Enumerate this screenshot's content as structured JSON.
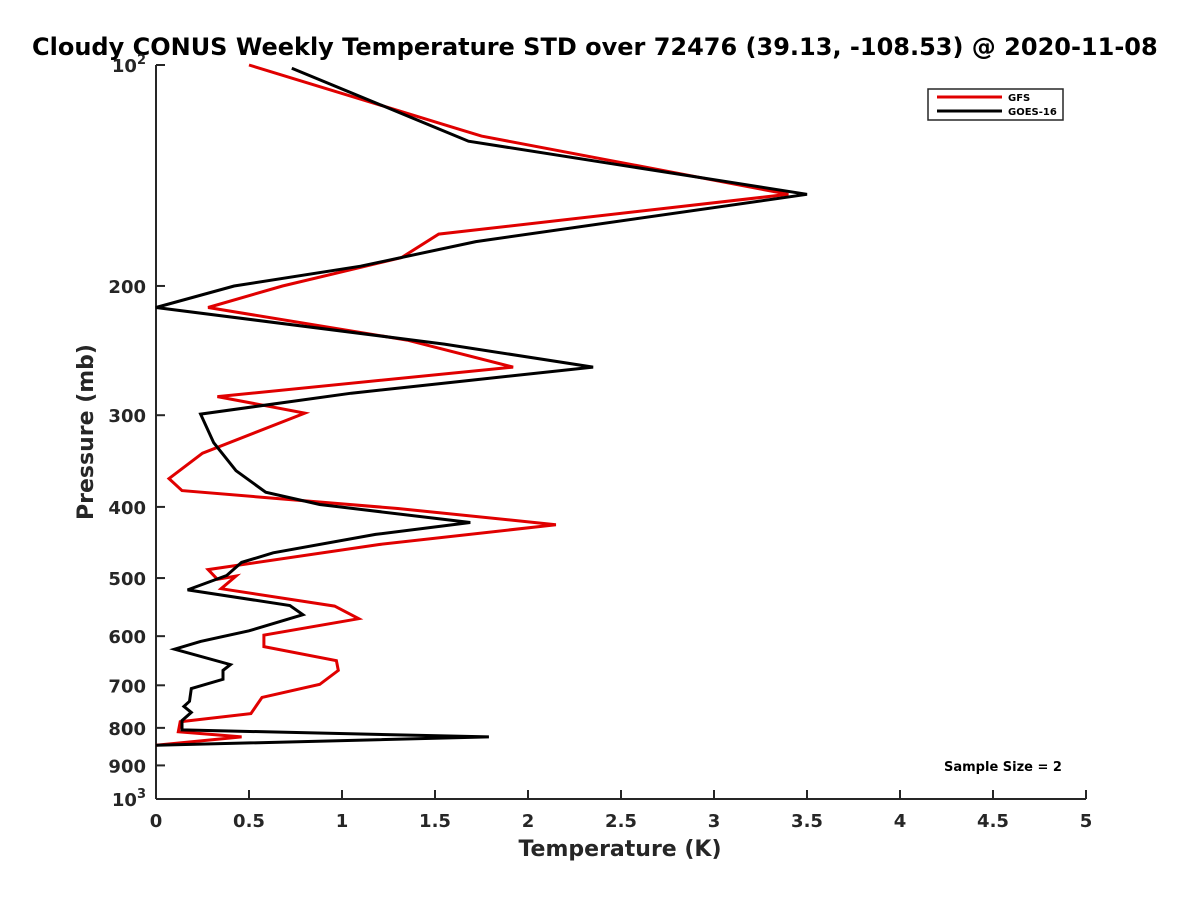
{
  "chart_data": {
    "type": "line",
    "title": "Cloudy CONUS Weekly Temperature STD over 72476 (39.13, -108.53) @ 2020-11-08",
    "xlabel": "Temperature (K)",
    "ylabel": "Pressure (mb)",
    "xlim": [
      0,
      5
    ],
    "ylim": [
      100,
      1000
    ],
    "yscale": "log",
    "y_reversed": true,
    "grid": false,
    "legend_position": "top-right",
    "x_ticks": [
      {
        "value": 0,
        "label": "0"
      },
      {
        "value": 0.5,
        "label": "0.5"
      },
      {
        "value": 1,
        "label": "1"
      },
      {
        "value": 1.5,
        "label": "1.5"
      },
      {
        "value": 2,
        "label": "2"
      },
      {
        "value": 2.5,
        "label": "2.5"
      },
      {
        "value": 3,
        "label": "3"
      },
      {
        "value": 3.5,
        "label": "3.5"
      },
      {
        "value": 4,
        "label": "4"
      },
      {
        "value": 4.5,
        "label": "4.5"
      },
      {
        "value": 5,
        "label": "5"
      }
    ],
    "y_ticks": [
      {
        "value": 100,
        "base": "10",
        "exp": "2"
      },
      {
        "value": 200,
        "label": "200"
      },
      {
        "value": 300,
        "label": "300"
      },
      {
        "value": 400,
        "label": "400"
      },
      {
        "value": 500,
        "label": "500"
      },
      {
        "value": 600,
        "label": "600"
      },
      {
        "value": 700,
        "label": "700"
      },
      {
        "value": 800,
        "label": "800"
      },
      {
        "value": 900,
        "label": "900"
      },
      {
        "value": 1000,
        "base": "10",
        "exp": "3"
      }
    ],
    "annotation": "Sample Size = 2",
    "series": [
      {
        "name": "GFS",
        "color": "#e00000",
        "points": [
          {
            "x": 0.5,
            "y": 100
          },
          {
            "x": 1.75,
            "y": 125
          },
          {
            "x": 3.4,
            "y": 150
          },
          {
            "x": 1.52,
            "y": 170
          },
          {
            "x": 1.32,
            "y": 183
          },
          {
            "x": 0.68,
            "y": 200
          },
          {
            "x": 0.28,
            "y": 214
          },
          {
            "x": 1.35,
            "y": 237
          },
          {
            "x": 1.92,
            "y": 258
          },
          {
            "x": 0.33,
            "y": 283
          },
          {
            "x": 0.8,
            "y": 298
          },
          {
            "x": 0.25,
            "y": 338
          },
          {
            "x": 0.07,
            "y": 366
          },
          {
            "x": 0.14,
            "y": 380
          },
          {
            "x": 1.3,
            "y": 402
          },
          {
            "x": 2.15,
            "y": 423
          },
          {
            "x": 1.2,
            "y": 450
          },
          {
            "x": 0.28,
            "y": 487
          },
          {
            "x": 0.33,
            "y": 502
          },
          {
            "x": 0.43,
            "y": 497
          },
          {
            "x": 0.35,
            "y": 517
          },
          {
            "x": 0.96,
            "y": 546
          },
          {
            "x": 1.09,
            "y": 568
          },
          {
            "x": 0.58,
            "y": 598
          },
          {
            "x": 0.58,
            "y": 620
          },
          {
            "x": 0.97,
            "y": 648
          },
          {
            "x": 0.98,
            "y": 668
          },
          {
            "x": 0.88,
            "y": 698
          },
          {
            "x": 0.57,
            "y": 727
          },
          {
            "x": 0.51,
            "y": 765
          },
          {
            "x": 0.13,
            "y": 785
          },
          {
            "x": 0.12,
            "y": 810
          },
          {
            "x": 0.46,
            "y": 823
          },
          {
            "x": 0.0,
            "y": 845
          }
        ]
      },
      {
        "name": "GOES-16",
        "color": "#000000",
        "points": [
          {
            "x": 0.73,
            "y": 101
          },
          {
            "x": 1.68,
            "y": 127
          },
          {
            "x": 3.5,
            "y": 150
          },
          {
            "x": 1.72,
            "y": 174
          },
          {
            "x": 1.1,
            "y": 188
          },
          {
            "x": 0.42,
            "y": 200
          },
          {
            "x": 0.0,
            "y": 214
          },
          {
            "x": 1.55,
            "y": 240
          },
          {
            "x": 2.35,
            "y": 258
          },
          {
            "x": 1.05,
            "y": 280
          },
          {
            "x": 0.24,
            "y": 299
          },
          {
            "x": 0.31,
            "y": 327
          },
          {
            "x": 0.43,
            "y": 357
          },
          {
            "x": 0.59,
            "y": 382
          },
          {
            "x": 0.88,
            "y": 397
          },
          {
            "x": 1.69,
            "y": 420
          },
          {
            "x": 1.18,
            "y": 436
          },
          {
            "x": 0.63,
            "y": 462
          },
          {
            "x": 0.46,
            "y": 476
          },
          {
            "x": 0.38,
            "y": 496
          },
          {
            "x": 0.17,
            "y": 519
          },
          {
            "x": 0.72,
            "y": 545
          },
          {
            "x": 0.79,
            "y": 561
          },
          {
            "x": 0.5,
            "y": 590
          },
          {
            "x": 0.24,
            "y": 610
          },
          {
            "x": 0.1,
            "y": 625
          },
          {
            "x": 0.4,
            "y": 656
          },
          {
            "x": 0.36,
            "y": 668
          },
          {
            "x": 0.36,
            "y": 687
          },
          {
            "x": 0.19,
            "y": 707
          },
          {
            "x": 0.18,
            "y": 736
          },
          {
            "x": 0.15,
            "y": 748
          },
          {
            "x": 0.19,
            "y": 762
          },
          {
            "x": 0.14,
            "y": 782
          },
          {
            "x": 0.14,
            "y": 805
          },
          {
            "x": 1.79,
            "y": 823
          },
          {
            "x": 0.0,
            "y": 845
          }
        ]
      }
    ]
  }
}
